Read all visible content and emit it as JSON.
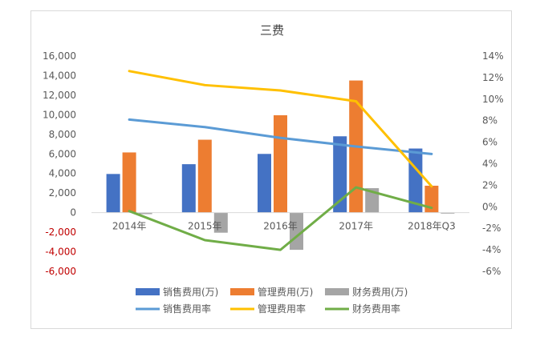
{
  "chart_data": {
    "type": "bar+line",
    "title": "三费",
    "categories": [
      "2014年",
      "2015年",
      "2016年",
      "2017年",
      "2018年Q3"
    ],
    "bar_series": [
      {
        "name": "销售费用(万)",
        "color": "#4472c4",
        "values": [
          3950,
          4950,
          6000,
          7800,
          6550
        ]
      },
      {
        "name": "管理费用(万)",
        "color": "#ed7d31",
        "values": [
          6150,
          7450,
          9950,
          13500,
          2750
        ]
      },
      {
        "name": "财务费用(万)",
        "color": "#a5a5a5",
        "values": [
          -150,
          -2050,
          -3800,
          2500,
          -100
        ]
      }
    ],
    "line_series": [
      {
        "name": "销售费用率",
        "color": "#5b9bd5",
        "values": [
          8.1,
          7.4,
          6.4,
          5.6,
          4.9
        ]
      },
      {
        "name": "管理费用率",
        "color": "#ffc000",
        "values": [
          12.6,
          11.3,
          10.8,
          9.8,
          1.9
        ]
      },
      {
        "name": "财务费用率",
        "color": "#70ad47",
        "values": [
          -0.4,
          -3.1,
          -4.0,
          1.8,
          -0.1
        ]
      }
    ],
    "y_left": {
      "min": -6000,
      "max": 16000,
      "step": 2000,
      "tick_labels": [
        "-6,000",
        "-4,000",
        "-2,000",
        "0",
        "2,000",
        "4,000",
        "6,000",
        "8,000",
        "10,000",
        "12,000",
        "14,000",
        "16,000"
      ]
    },
    "y_right": {
      "min": -6,
      "max": 14,
      "step": 2,
      "tick_labels": [
        "-6%",
        "-4%",
        "-2%",
        "0%",
        "2%",
        "4%",
        "6%",
        "8%",
        "10%",
        "12%",
        "14%"
      ]
    },
    "grid": false,
    "legend_position": "bottom"
  }
}
